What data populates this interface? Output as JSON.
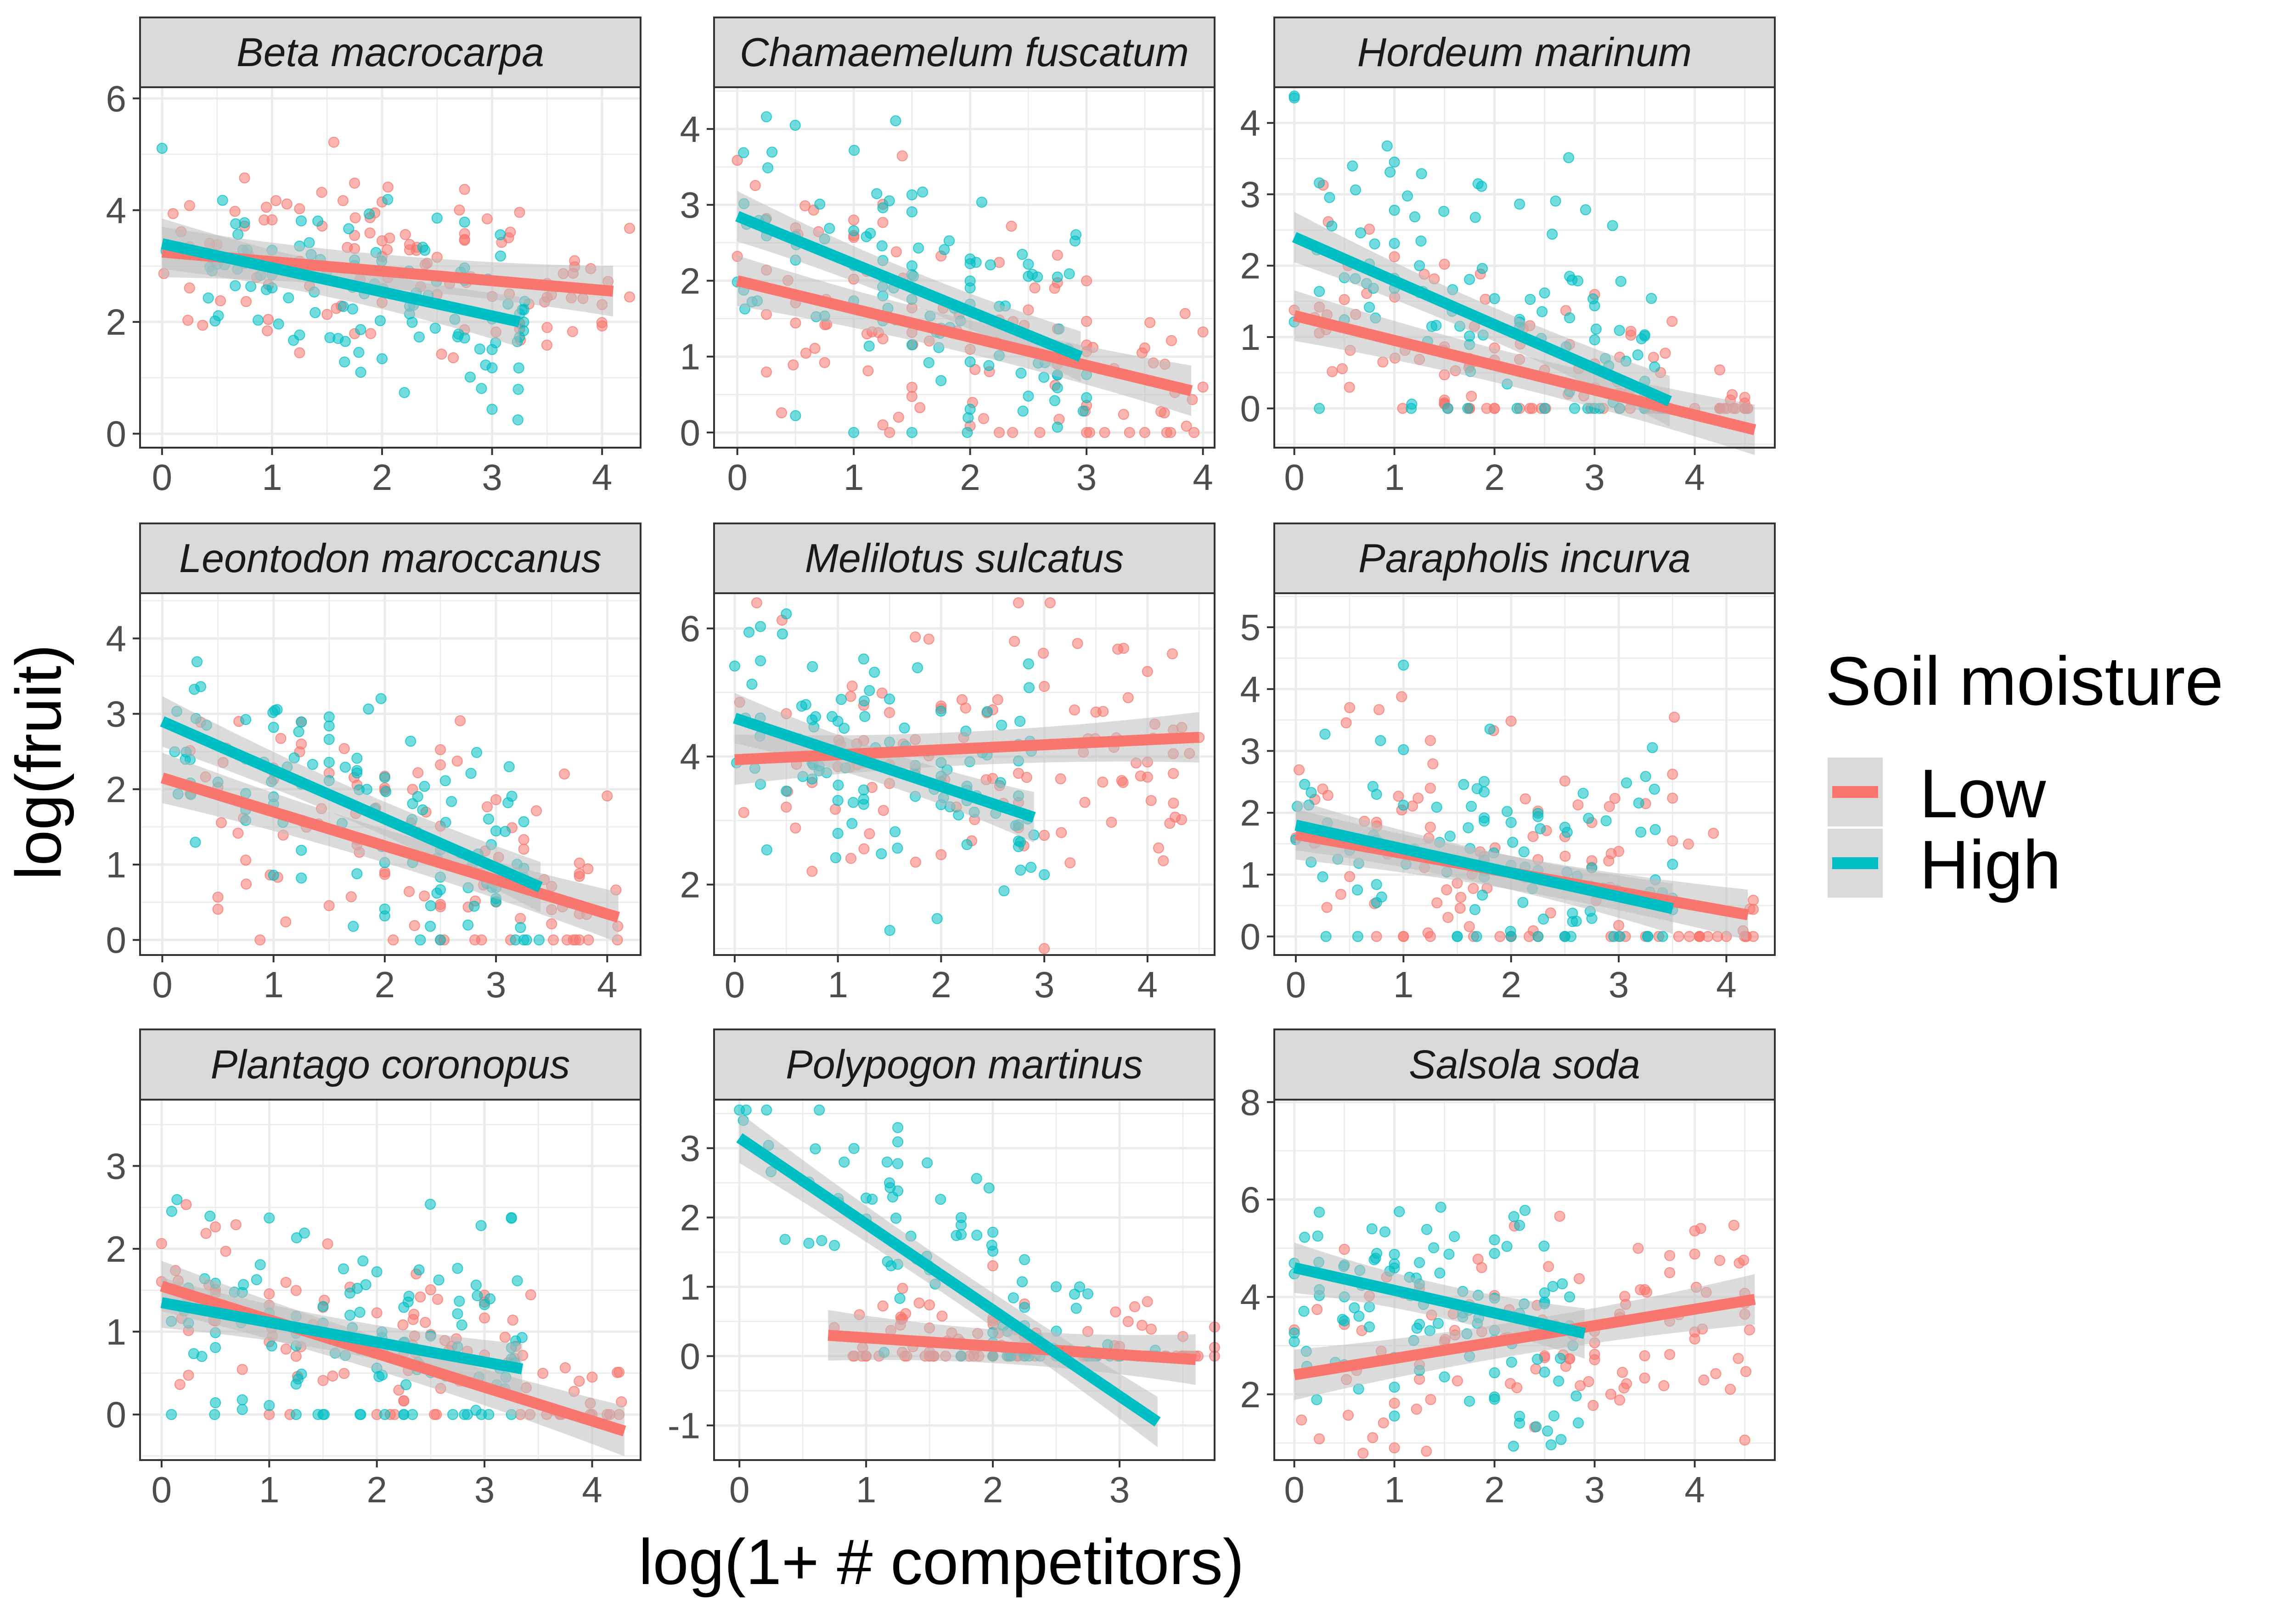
{
  "chart_data": {
    "type": "scatter",
    "xlabel": "log(1+ # competitors)",
    "ylabel": "log(fruit)",
    "legend": {
      "title": "Soil moisture",
      "placement": "right",
      "entries": [
        {
          "name": "Low",
          "color": "#F8766D"
        },
        {
          "name": "High",
          "color": "#00BFC4"
        }
      ]
    },
    "colors": {
      "Low": "#F8766D",
      "High": "#00BFC4",
      "strip": "#d9d9d9",
      "grid": "#ebebeb",
      "ci_band": "#bebebe"
    },
    "panels": [
      {
        "title": "Beta macrocarpa",
        "xlim": [
          -0.2,
          4.35
        ],
        "ylim": [
          -0.25,
          6.2
        ],
        "xticks": [
          0,
          1,
          2,
          3,
          4
        ],
        "yticks": [
          0,
          2,
          4,
          6
        ],
        "fits": {
          "Low": {
            "x": [
              0,
              4.1
            ],
            "y": [
              3.25,
              2.55
            ]
          },
          "High": {
            "x": [
              0,
              3.25
            ],
            "y": [
              3.4,
              2.0
            ]
          }
        },
        "spread": {
          "Low": {
            "xmin": 0,
            "xmax": 4.2,
            "sd": 0.75
          },
          "High": {
            "xmin": 0,
            "xmax": 3.3,
            "sd": 0.85
          }
        }
      },
      {
        "title": "Chamaemelum fuscatum",
        "xlim": [
          -0.2,
          4.1
        ],
        "ylim": [
          -0.2,
          4.55
        ],
        "xticks": [
          0,
          1,
          2,
          3,
          4
        ],
        "yticks": [
          0,
          1,
          2,
          3,
          4
        ],
        "fits": {
          "Low": {
            "x": [
              0,
              3.9
            ],
            "y": [
              2.0,
              0.55
            ]
          },
          "High": {
            "x": [
              0,
              2.95
            ],
            "y": [
              2.85,
              1.0
            ]
          }
        },
        "spread": {
          "Low": {
            "xmin": 0,
            "xmax": 3.95,
            "sd": 0.8
          },
          "High": {
            "xmin": 0,
            "xmax": 3.0,
            "sd": 0.9
          }
        }
      },
      {
        "title": "Hordeum marinum",
        "xlim": [
          -0.2,
          4.8
        ],
        "ylim": [
          -0.55,
          4.5
        ],
        "xticks": [
          0,
          1,
          2,
          3,
          4
        ],
        "yticks": [
          0,
          1,
          2,
          3,
          4
        ],
        "fits": {
          "Low": {
            "x": [
              0,
              4.6
            ],
            "y": [
              1.3,
              -0.3
            ]
          },
          "High": {
            "x": [
              0,
              3.75
            ],
            "y": [
              2.4,
              0.1
            ]
          }
        },
        "spread": {
          "Low": {
            "xmin": 0,
            "xmax": 4.6,
            "sd": 0.65
          },
          "High": {
            "xmin": 0,
            "xmax": 3.75,
            "sd": 1.0
          }
        }
      },
      {
        "title": "Leontodon maroccanus",
        "xlim": [
          -0.2,
          4.3
        ],
        "ylim": [
          -0.2,
          4.6
        ],
        "xticks": [
          0,
          1,
          2,
          3,
          4
        ],
        "yticks": [
          0,
          1,
          2,
          3,
          4
        ],
        "fits": {
          "Low": {
            "x": [
              0,
              4.1
            ],
            "y": [
              2.15,
              0.3
            ]
          },
          "High": {
            "x": [
              0,
              3.4
            ],
            "y": [
              2.9,
              0.7
            ]
          }
        },
        "spread": {
          "Low": {
            "xmin": 0,
            "xmax": 4.15,
            "sd": 0.75
          },
          "High": {
            "xmin": 0,
            "xmax": 3.4,
            "sd": 0.8
          }
        }
      },
      {
        "title": "Melilotus sulcatus",
        "xlim": [
          -0.2,
          4.65
        ],
        "ylim": [
          0.9,
          6.55
        ],
        "xticks": [
          0,
          1,
          2,
          3,
          4
        ],
        "yticks": [
          2,
          4,
          6
        ],
        "fits": {
          "Low": {
            "x": [
              0,
              4.5
            ],
            "y": [
              3.95,
              4.3
            ]
          },
          "High": {
            "x": [
              0,
              2.9
            ],
            "y": [
              4.6,
              3.05
            ]
          }
        },
        "spread": {
          "Low": {
            "xmin": 0,
            "xmax": 4.5,
            "sd": 1.0
          },
          "High": {
            "xmin": 0,
            "xmax": 2.9,
            "sd": 0.9
          }
        }
      },
      {
        "title": "Parapholis incurva",
        "xlim": [
          -0.2,
          4.45
        ],
        "ylim": [
          -0.3,
          5.55
        ],
        "xticks": [
          0,
          1,
          2,
          3,
          4
        ],
        "yticks": [
          0,
          1,
          2,
          3,
          4,
          5
        ],
        "fits": {
          "Low": {
            "x": [
              0,
              4.2
            ],
            "y": [
              1.65,
              0.35
            ]
          },
          "High": {
            "x": [
              0,
              3.5
            ],
            "y": [
              1.8,
              0.45
            ]
          }
        },
        "spread": {
          "Low": {
            "xmin": 0,
            "xmax": 4.25,
            "sd": 1.2
          },
          "High": {
            "xmin": 0,
            "xmax": 3.5,
            "sd": 0.9
          }
        }
      },
      {
        "title": "Plantago coronopus",
        "xlim": [
          -0.2,
          4.45
        ],
        "ylim": [
          -0.55,
          3.8
        ],
        "xticks": [
          0,
          1,
          2,
          3,
          4
        ],
        "yticks": [
          0,
          1,
          2,
          3
        ],
        "fits": {
          "Low": {
            "x": [
              0,
              4.3
            ],
            "y": [
              1.55,
              -0.2
            ]
          },
          "High": {
            "x": [
              0,
              3.35
            ],
            "y": [
              1.35,
              0.55
            ]
          }
        },
        "spread": {
          "Low": {
            "xmin": 0,
            "xmax": 4.35,
            "sd": 0.65
          },
          "High": {
            "xmin": 0,
            "xmax": 3.35,
            "sd": 0.75
          }
        }
      },
      {
        "title": "Polypogon martinus",
        "xlim": [
          -0.2,
          3.75
        ],
        "ylim": [
          -1.5,
          3.7
        ],
        "xticks": [
          0,
          1,
          2,
          3
        ],
        "yticks": [
          -1,
          0,
          1,
          2,
          3
        ],
        "fits": {
          "Low": {
            "x": [
              0.7,
              3.6
            ],
            "y": [
              0.3,
              -0.05
            ]
          },
          "High": {
            "x": [
              0,
              3.3
            ],
            "y": [
              3.15,
              -0.95
            ]
          }
        },
        "spread": {
          "Low": {
            "xmin": 0.7,
            "xmax": 3.65,
            "sd": 0.45
          },
          "High": {
            "xmin": 0,
            "xmax": 3.3,
            "sd": 0.7
          }
        }
      },
      {
        "title": "Salsola soda",
        "xlim": [
          -0.2,
          4.8
        ],
        "ylim": [
          0.65,
          8.05
        ],
        "xticks": [
          0,
          1,
          2,
          3,
          4
        ],
        "yticks": [
          2,
          4,
          6,
          8
        ],
        "fits": {
          "Low": {
            "x": [
              0,
              4.6
            ],
            "y": [
              2.4,
              3.95
            ]
          },
          "High": {
            "x": [
              0,
              2.9
            ],
            "y": [
              4.6,
              3.25
            ]
          }
        },
        "spread": {
          "Low": {
            "xmin": 0,
            "xmax": 4.6,
            "sd": 1.0
          },
          "High": {
            "xmin": 0,
            "xmax": 2.9,
            "sd": 1.3
          }
        }
      }
    ]
  }
}
